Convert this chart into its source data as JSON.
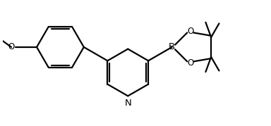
{
  "bg_color": "#ffffff",
  "line_color": "#000000",
  "line_width": 1.6,
  "dbo": 0.055,
  "font_size": 8.5,
  "fig_width": 3.84,
  "fig_height": 1.79,
  "xlim": [
    -2.8,
    4.2
  ],
  "ylim": [
    -1.5,
    1.8
  ]
}
